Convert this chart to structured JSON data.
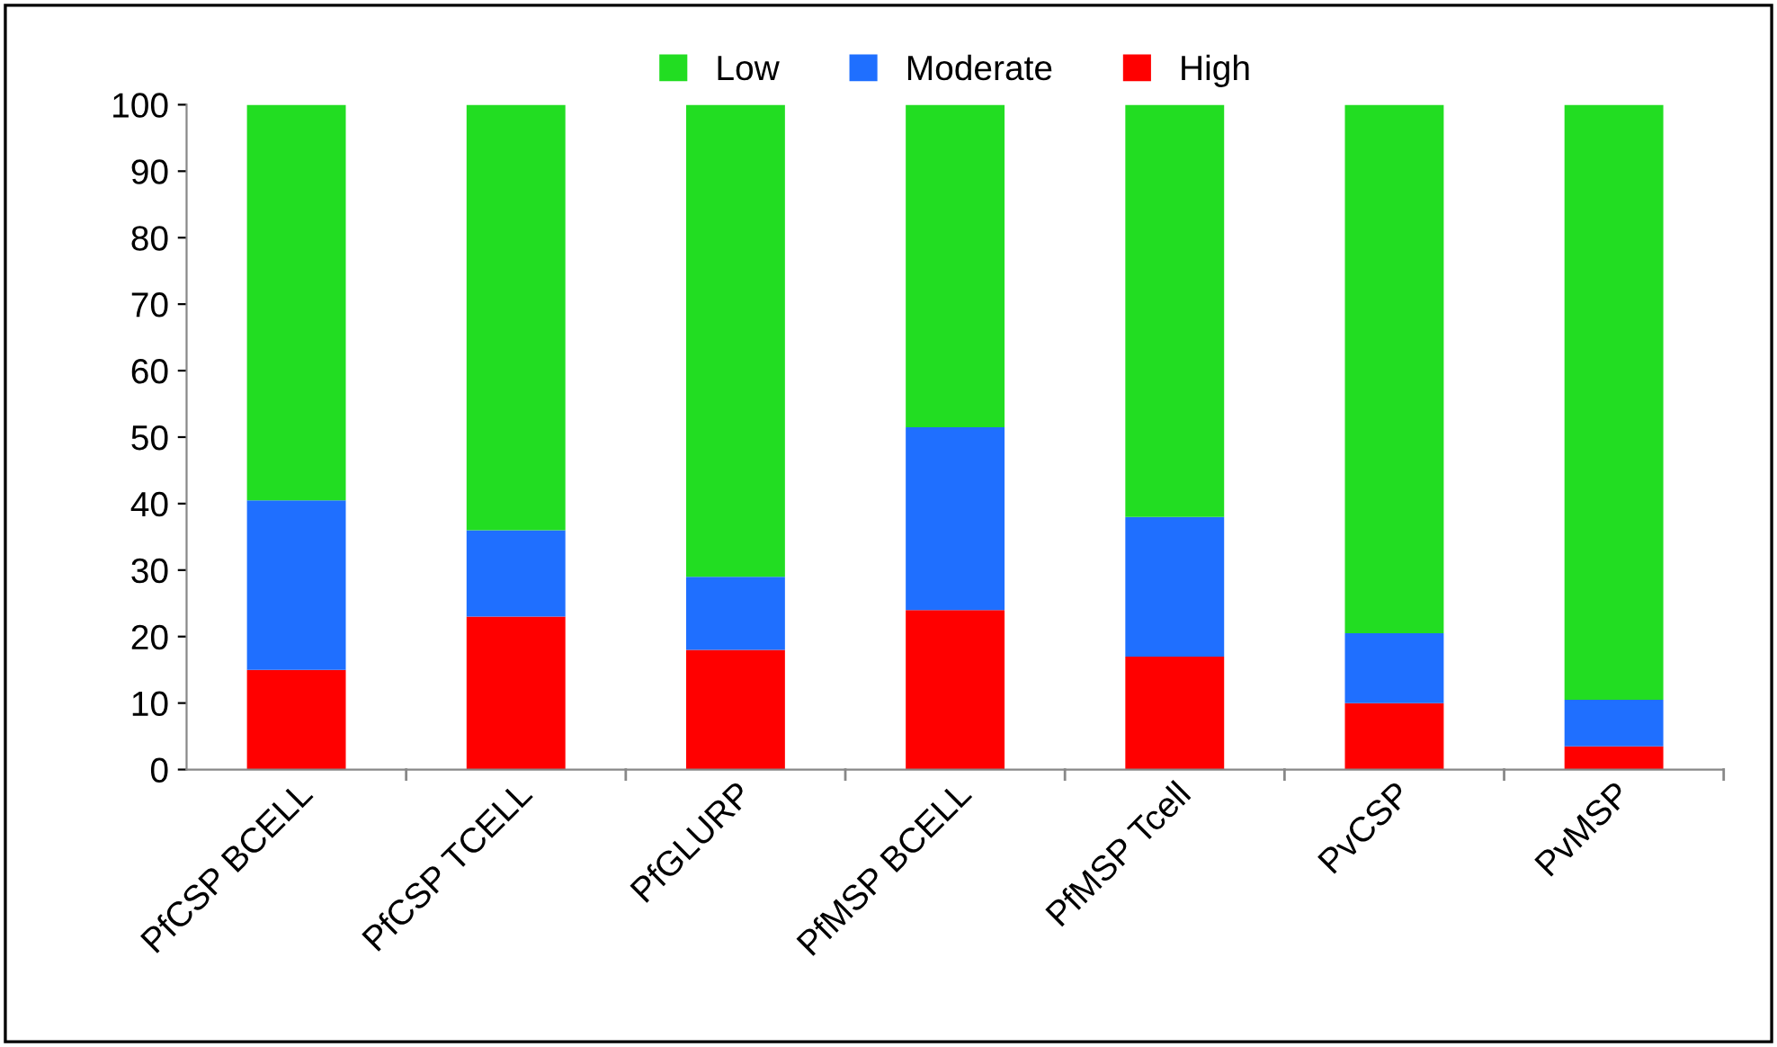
{
  "chart_data": {
    "type": "bar",
    "stacked": true,
    "categories": [
      "PfCSP BCELL",
      "PfCSP TCELL",
      "PfGLURP",
      "PfMSP BCELL",
      "PfMSP Tcell",
      "PvCSP",
      "PvMSP"
    ],
    "series": [
      {
        "name": "High",
        "color": "#ff0000",
        "values": [
          15,
          23,
          18,
          24,
          17,
          10,
          3.5
        ]
      },
      {
        "name": "Moderate",
        "color": "#1f6fff",
        "values": [
          25.5,
          13,
          11,
          27.5,
          21,
          10.5,
          7
        ]
      },
      {
        "name": "Low",
        "color": "#22dd22",
        "values": [
          59.5,
          64,
          71,
          48.5,
          62,
          79.5,
          89.5
        ]
      }
    ],
    "ylim": [
      0,
      100
    ],
    "yticks": [
      0,
      10,
      20,
      30,
      40,
      50,
      60,
      70,
      80,
      90,
      100
    ],
    "grid": false,
    "legend": "top"
  }
}
